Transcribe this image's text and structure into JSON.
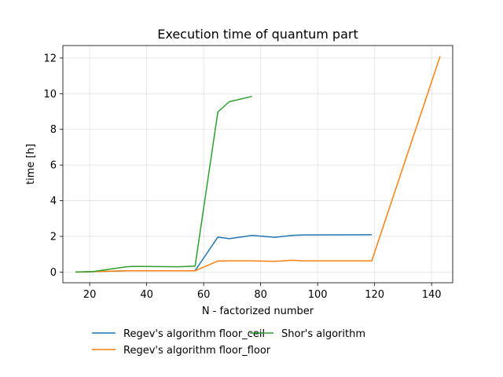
{
  "chart_data": {
    "type": "line",
    "title": "Execution time of quantum part",
    "xlabel": "N - factorized number",
    "ylabel": "time [h]",
    "xlim": [
      10.6,
      147.4
    ],
    "ylim": [
      -0.6,
      12.7
    ],
    "xticks": [
      20,
      40,
      60,
      80,
      100,
      120,
      140
    ],
    "yticks": [
      0,
      2,
      4,
      6,
      8,
      10,
      12
    ],
    "grid": true,
    "legend_position": "bottom (below plot, two columns)",
    "series": [
      {
        "name": "Regev's algorithm floor_ceil",
        "color": "#1f77b4",
        "x": [
          15,
          21,
          33,
          35,
          39,
          51,
          55,
          57,
          65,
          69,
          77,
          85,
          91,
          95,
          119
        ],
        "y": [
          0.0,
          0.02,
          0.07,
          0.07,
          0.07,
          0.07,
          0.07,
          0.08,
          1.96,
          1.87,
          2.05,
          1.95,
          2.05,
          2.08,
          2.09
        ]
      },
      {
        "name": "Regev's algorithm floor_floor",
        "color": "#ff7f0e",
        "x": [
          15,
          21,
          33,
          35,
          39,
          51,
          55,
          57,
          65,
          69,
          77,
          85,
          91,
          95,
          119,
          143
        ],
        "y": [
          0.0,
          0.02,
          0.07,
          0.07,
          0.07,
          0.07,
          0.07,
          0.07,
          0.62,
          0.63,
          0.63,
          0.6,
          0.66,
          0.63,
          0.63,
          12.1
        ]
      },
      {
        "name": "Shor's algorithm",
        "color": "#2ca02c",
        "x": [
          15,
          21,
          33,
          35,
          39,
          51,
          55,
          57,
          65,
          69,
          77
        ],
        "y": [
          0.0,
          0.02,
          0.3,
          0.31,
          0.31,
          0.3,
          0.32,
          0.33,
          8.98,
          9.55,
          9.85
        ]
      }
    ]
  }
}
